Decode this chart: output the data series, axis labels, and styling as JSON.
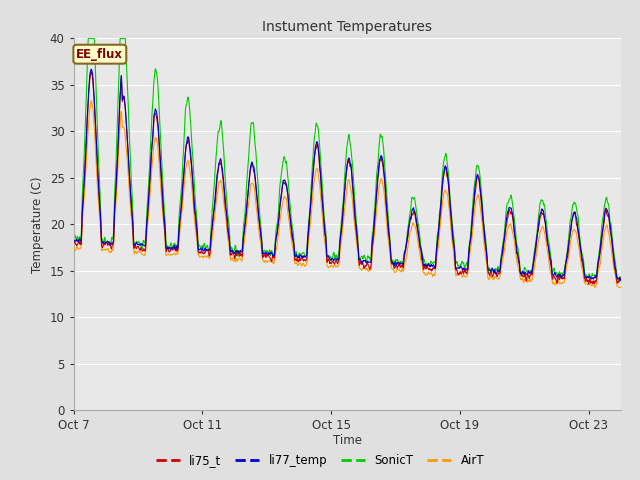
{
  "title": "Instument Temperatures",
  "xlabel": "Time",
  "ylabel": "Temperature (C)",
  "ylim": [
    0,
    40
  ],
  "x_ticks_labels": [
    "Oct 7",
    "Oct 11",
    "Oct 15",
    "Oct 19",
    "Oct 23"
  ],
  "x_ticks_positions": [
    0,
    4,
    8,
    12,
    16
  ],
  "background_color": "#e0e0e0",
  "plot_bg_color": "#e8e8e8",
  "grid_color": "#ffffff",
  "colors": {
    "li75_t": "#cc0000",
    "li77_temp": "#0000cc",
    "SonicT": "#00cc00",
    "AirT": "#ff9900"
  },
  "annotation_text": "EE_flux",
  "annotation_box_color": "#ffffcc",
  "annotation_border_color": "#886622",
  "annotation_text_color": "#800000",
  "n_days": 17,
  "pts_per_day": 144
}
